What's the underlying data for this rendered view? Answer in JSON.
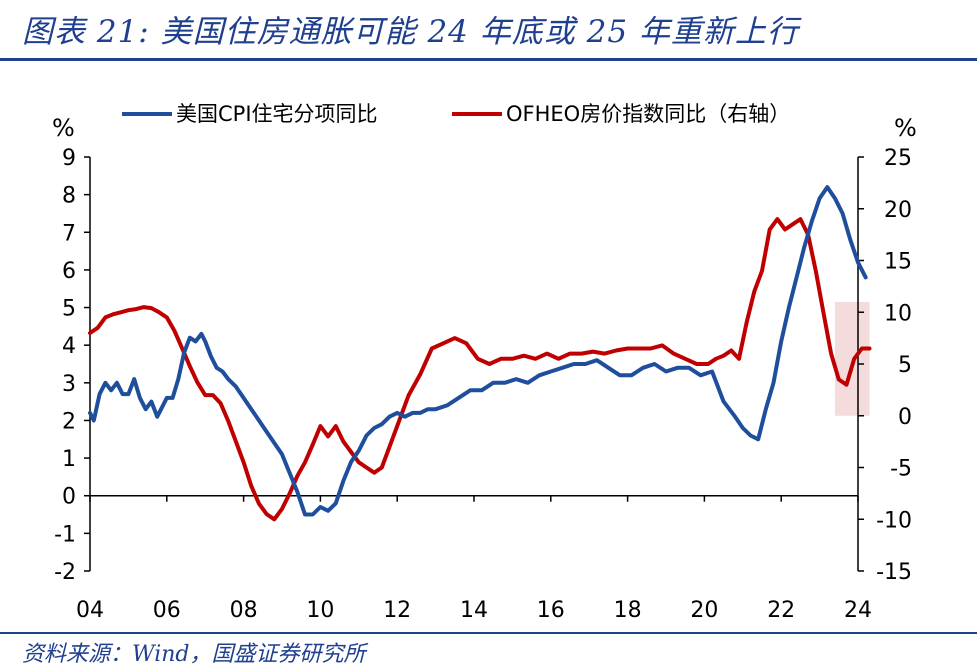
{
  "header": {
    "title": "图表 21: 美国住房通胀可能 24 年底或 25 年重新上行"
  },
  "footer": {
    "source": "资料来源：Wind，国盛证券研究所"
  },
  "colors": {
    "cpi": "#1f4e9c",
    "ofheo": "#c00000",
    "highlight": "#f4dcdc",
    "brand": "#1f3f8f"
  },
  "chart_data": {
    "type": "line",
    "title": "图表 21: 美国住房通胀可能 24 年底或 25 年重新上行",
    "left_axis": {
      "unit": "%",
      "ylim": [
        -2,
        9
      ],
      "ticks": [
        "-2",
        "-1",
        "0",
        "1",
        "2",
        "3",
        "4",
        "5",
        "6",
        "7",
        "8",
        "9"
      ]
    },
    "right_axis": {
      "unit": "%",
      "ylim": [
        -15,
        25
      ],
      "ticks": [
        "-15",
        "-10",
        "-5",
        "0",
        "5",
        "10",
        "15",
        "20",
        "25"
      ]
    },
    "x_axis": {
      "xlim": [
        2004,
        2024
      ],
      "ticks": [
        "04",
        "06",
        "08",
        "10",
        "12",
        "14",
        "16",
        "18",
        "20",
        "22",
        "24"
      ]
    },
    "legend": {
      "placement": "top",
      "entries": [
        "美国CPI住宅分项同比",
        "OFHEO房价指数同比（右轴）"
      ]
    },
    "highlight_region": {
      "x": [
        2023.4,
        2024.3
      ],
      "y_right": [
        0,
        11
      ]
    },
    "series": [
      {
        "name": "美国CPI住宅分项同比",
        "axis": "left",
        "x": [
          2004.0,
          2004.1,
          2004.25,
          2004.4,
          2004.55,
          2004.7,
          2004.85,
          2005.0,
          2005.15,
          2005.3,
          2005.45,
          2005.6,
          2005.75,
          2005.9,
          2006.0,
          2006.15,
          2006.3,
          2006.45,
          2006.6,
          2006.75,
          2006.9,
          2007.0,
          2007.15,
          2007.3,
          2007.45,
          2007.6,
          2007.8,
          2008.0,
          2008.2,
          2008.4,
          2008.6,
          2008.8,
          2009.0,
          2009.2,
          2009.4,
          2009.6,
          2009.8,
          2010.0,
          2010.2,
          2010.4,
          2010.6,
          2010.8,
          2011.0,
          2011.2,
          2011.4,
          2011.6,
          2011.8,
          2012.0,
          2012.2,
          2012.4,
          2012.6,
          2012.8,
          2013.0,
          2013.3,
          2013.6,
          2013.9,
          2014.2,
          2014.5,
          2014.8,
          2015.1,
          2015.4,
          2015.7,
          2016.0,
          2016.3,
          2016.6,
          2016.9,
          2017.2,
          2017.5,
          2017.8,
          2018.1,
          2018.4,
          2018.7,
          2019.0,
          2019.3,
          2019.6,
          2019.9,
          2020.2,
          2020.5,
          2020.8,
          2021.0,
          2021.2,
          2021.4,
          2021.6,
          2021.8,
          2022.0,
          2022.2,
          2022.4,
          2022.6,
          2022.8,
          2023.0,
          2023.2,
          2023.4,
          2023.6,
          2023.8,
          2024.0,
          2024.2
        ],
        "values": [
          2.2,
          2.0,
          2.7,
          3.0,
          2.8,
          3.0,
          2.7,
          2.7,
          3.1,
          2.6,
          2.3,
          2.5,
          2.1,
          2.4,
          2.6,
          2.6,
          3.1,
          3.8,
          4.2,
          4.1,
          4.3,
          4.1,
          3.7,
          3.4,
          3.3,
          3.1,
          2.9,
          2.6,
          2.3,
          2.0,
          1.7,
          1.4,
          1.1,
          0.6,
          0.1,
          -0.5,
          -0.5,
          -0.3,
          -0.4,
          -0.2,
          0.4,
          0.9,
          1.2,
          1.6,
          1.8,
          1.9,
          2.1,
          2.2,
          2.1,
          2.2,
          2.2,
          2.3,
          2.3,
          2.4,
          2.6,
          2.8,
          2.8,
          3.0,
          3.0,
          3.1,
          3.0,
          3.2,
          3.3,
          3.4,
          3.5,
          3.5,
          3.6,
          3.4,
          3.2,
          3.2,
          3.4,
          3.5,
          3.3,
          3.4,
          3.4,
          3.2,
          3.3,
          2.5,
          2.1,
          1.8,
          1.6,
          1.5,
          2.3,
          3.0,
          4.1,
          5.0,
          5.8,
          6.6,
          7.3,
          7.9,
          8.2,
          7.9,
          7.5,
          6.8,
          6.2,
          5.8
        ]
      },
      {
        "name": "OFHEO房价指数同比（右轴）",
        "axis": "right",
        "x": [
          2004.0,
          2004.2,
          2004.4,
          2004.6,
          2004.8,
          2005.0,
          2005.2,
          2005.4,
          2005.6,
          2005.8,
          2006.0,
          2006.2,
          2006.4,
          2006.6,
          2006.8,
          2007.0,
          2007.2,
          2007.4,
          2007.6,
          2007.8,
          2008.0,
          2008.2,
          2008.4,
          2008.6,
          2008.8,
          2009.0,
          2009.2,
          2009.4,
          2009.6,
          2009.8,
          2010.0,
          2010.2,
          2010.4,
          2010.6,
          2010.8,
          2011.0,
          2011.2,
          2011.4,
          2011.6,
          2011.8,
          2012.0,
          2012.3,
          2012.6,
          2012.9,
          2013.2,
          2013.5,
          2013.8,
          2014.1,
          2014.4,
          2014.7,
          2015.0,
          2015.3,
          2015.6,
          2015.9,
          2016.2,
          2016.5,
          2016.8,
          2017.1,
          2017.4,
          2017.7,
          2018.0,
          2018.3,
          2018.6,
          2018.9,
          2019.2,
          2019.5,
          2019.8,
          2020.1,
          2020.3,
          2020.5,
          2020.7,
          2020.9,
          2021.1,
          2021.3,
          2021.5,
          2021.7,
          2021.9,
          2022.1,
          2022.3,
          2022.5,
          2022.7,
          2022.9,
          2023.1,
          2023.3,
          2023.5,
          2023.7,
          2023.9,
          2024.1,
          2024.3
        ],
        "values": [
          8.0,
          8.5,
          9.5,
          9.8,
          10.0,
          10.2,
          10.3,
          10.5,
          10.4,
          10.0,
          9.5,
          8.2,
          6.5,
          4.8,
          3.2,
          2.0,
          2.0,
          1.2,
          -0.5,
          -2.5,
          -4.5,
          -6.8,
          -8.5,
          -9.5,
          -10.0,
          -9.0,
          -7.5,
          -5.8,
          -4.5,
          -2.8,
          -1.0,
          -2.0,
          -1.0,
          -2.5,
          -3.5,
          -4.5,
          -5.0,
          -5.5,
          -5.0,
          -3.0,
          -1.0,
          2.0,
          4.0,
          6.5,
          7.0,
          7.5,
          7.0,
          5.5,
          5.0,
          5.5,
          5.5,
          5.8,
          5.5,
          6.0,
          5.5,
          6.0,
          6.0,
          6.2,
          6.0,
          6.3,
          6.5,
          6.5,
          6.5,
          6.8,
          6.0,
          5.5,
          5.0,
          5.0,
          5.5,
          5.8,
          6.3,
          5.5,
          9.0,
          12.0,
          14.0,
          18.0,
          19.0,
          18.0,
          18.5,
          19.0,
          17.5,
          14.0,
          10.0,
          6.0,
          3.5,
          3.0,
          5.5,
          6.5,
          6.5
        ]
      }
    ]
  }
}
